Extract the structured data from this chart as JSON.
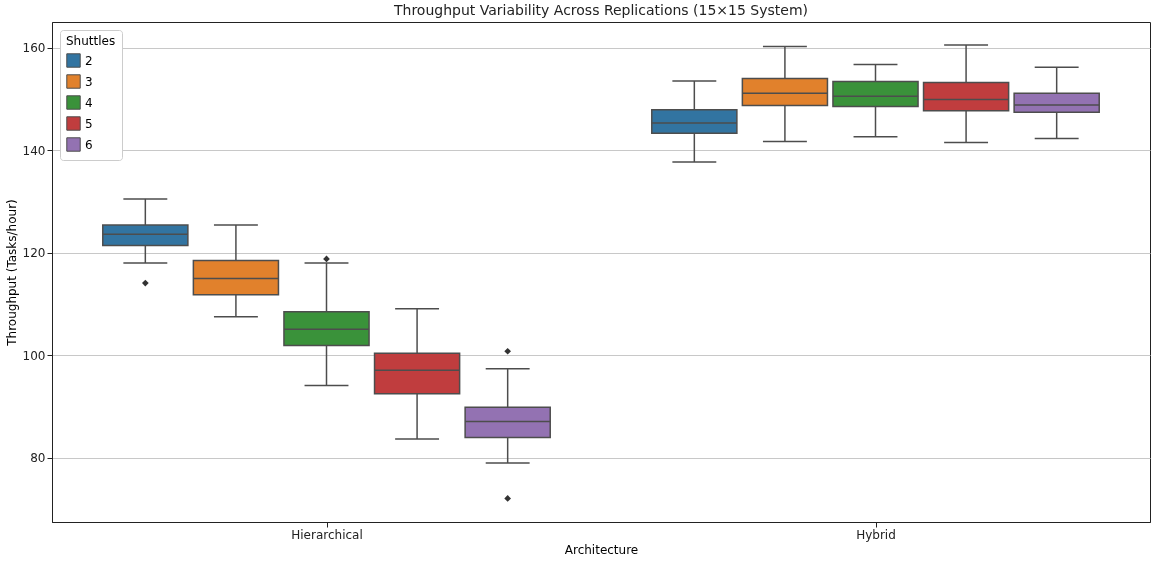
{
  "chart_data": {
    "type": "box",
    "title": "Throughput Variability Across Replications (15×15 System)",
    "xlabel": "Architecture",
    "ylabel": "Throughput (Tasks/hour)",
    "legend_title": "Shuttles",
    "categories": [
      "Hierarchical",
      "Hybrid"
    ],
    "ylim": [
      67.5,
      165
    ],
    "yticks": [
      80,
      100,
      120,
      140,
      160
    ],
    "grid": "y",
    "legend": "top left",
    "series": [
      {
        "name": "2",
        "color": "#3274a1",
        "boxes": [
          {
            "low": 118.0,
            "q1": 121.4,
            "median": 123.6,
            "q3": 125.4,
            "high": 130.5,
            "outliers": [
              114.1
            ]
          },
          {
            "low": 137.7,
            "q1": 143.3,
            "median": 145.3,
            "q3": 147.9,
            "high": 153.5
          }
        ]
      },
      {
        "name": "3",
        "color": "#e1812c",
        "boxes": [
          {
            "low": 107.5,
            "q1": 111.8,
            "median": 115.0,
            "q3": 118.5,
            "high": 125.4
          },
          {
            "low": 141.7,
            "q1": 148.7,
            "median": 151.1,
            "q3": 154.0,
            "high": 160.2
          }
        ]
      },
      {
        "name": "4",
        "color": "#3a923a",
        "boxes": [
          {
            "low": 94.1,
            "q1": 101.9,
            "median": 105.1,
            "q3": 108.5,
            "high": 118.0,
            "outliers": [
              118.8
            ]
          },
          {
            "low": 142.6,
            "q1": 148.5,
            "median": 150.5,
            "q3": 153.4,
            "high": 156.7
          }
        ]
      },
      {
        "name": "5",
        "color": "#c03d3e",
        "boxes": [
          {
            "low": 83.7,
            "q1": 92.5,
            "median": 97.1,
            "q3": 100.4,
            "high": 109.1
          },
          {
            "low": 141.5,
            "q1": 147.7,
            "median": 149.9,
            "q3": 153.2,
            "high": 160.5
          }
        ]
      },
      {
        "name": "6",
        "color": "#9372b2",
        "boxes": [
          {
            "low": 79.0,
            "q1": 84.0,
            "median": 87.1,
            "q3": 89.9,
            "high": 97.4,
            "outliers": [
              100.8,
              72.1
            ]
          },
          {
            "low": 142.3,
            "q1": 147.4,
            "median": 148.8,
            "q3": 151.1,
            "high": 156.2
          }
        ]
      }
    ]
  }
}
